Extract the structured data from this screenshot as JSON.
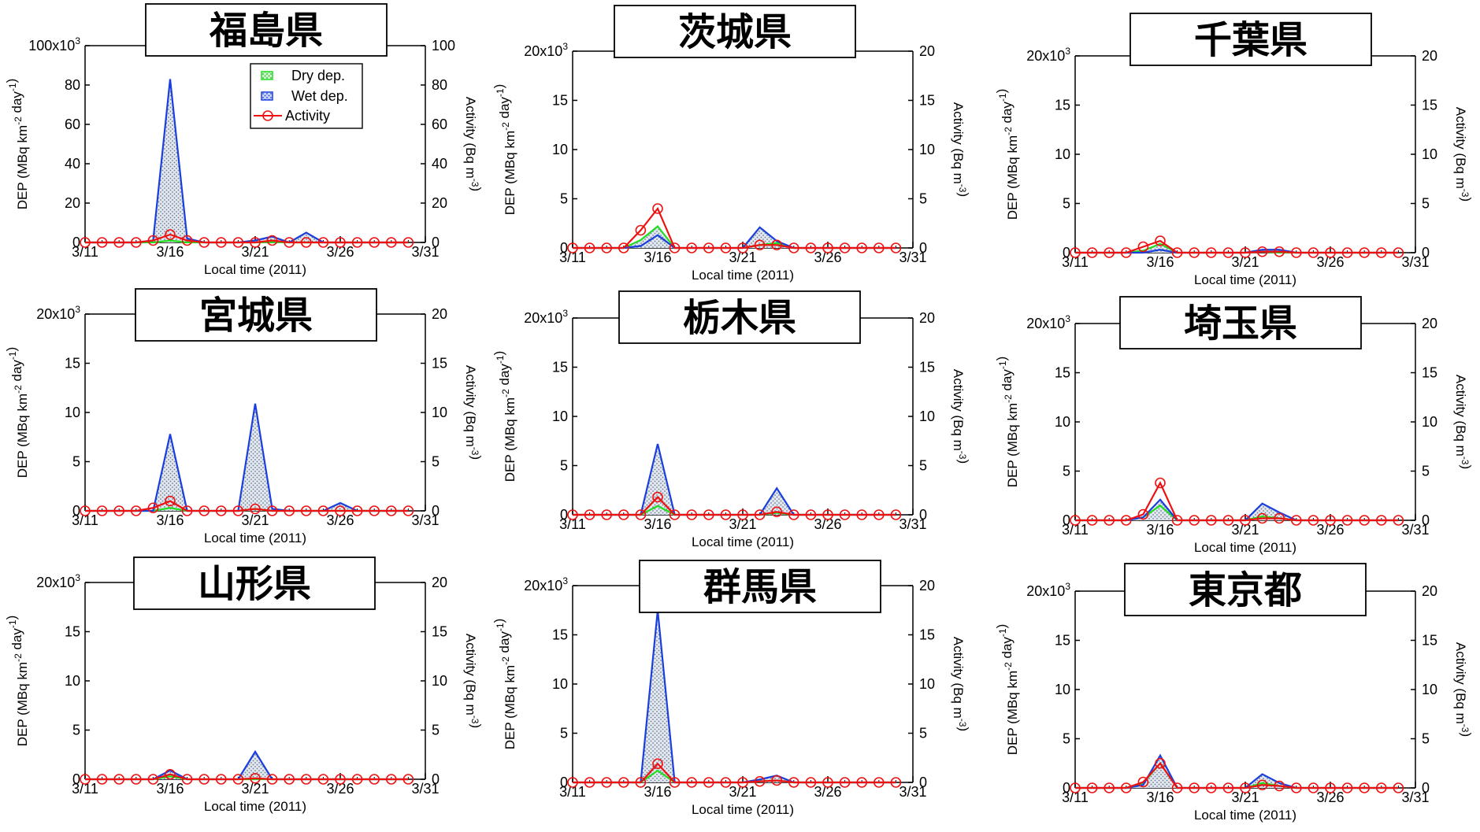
{
  "chart_data": [
    {
      "type": "area",
      "title": "福島県",
      "xlabel": "Local time (2011)",
      "ylabel": "DEP (MBq km-2 day-1)",
      "y2label": "Activity (Bq m-3)",
      "xticks": [
        "3/11",
        "3/16",
        "3/21",
        "3/26",
        "3/31"
      ],
      "x": [
        "3/11",
        "3/12",
        "3/13",
        "3/14",
        "3/15",
        "3/16",
        "3/17",
        "3/18",
        "3/19",
        "3/20",
        "3/21",
        "3/22",
        "3/23",
        "3/24",
        "3/25",
        "3/26",
        "3/27",
        "3/28",
        "3/29",
        "3/30"
      ],
      "ylim": [
        0,
        100000
      ],
      "yticks": [
        "0",
        "20",
        "40",
        "60",
        "80",
        "100x10³"
      ],
      "y2lim": [
        0,
        100
      ],
      "y2ticks": [
        "0",
        "20",
        "40",
        "60",
        "80",
        "100"
      ],
      "legend": {
        "location": "top-right",
        "entries": [
          "Dry dep.",
          "Wet dep.",
          "Activity"
        ]
      },
      "series": [
        {
          "name": "Dry dep.",
          "values": [
            0,
            0,
            0,
            0,
            0,
            1000,
            0,
            0,
            0,
            0,
            0,
            200,
            0,
            0,
            0,
            0,
            0,
            0,
            0,
            0
          ]
        },
        {
          "name": "Wet dep.",
          "values": [
            0,
            0,
            0,
            0,
            1000,
            83000,
            2000,
            0,
            0,
            0,
            1000,
            3000,
            0,
            5000,
            0,
            0,
            0,
            0,
            0,
            0
          ]
        },
        {
          "name": "Activity",
          "values": [
            0,
            0,
            0,
            0,
            1,
            4,
            1,
            0,
            0,
            0,
            0,
            1,
            0,
            0,
            0,
            0,
            0,
            0,
            0,
            0
          ]
        }
      ]
    },
    {
      "type": "area",
      "title": "茨城県",
      "xlabel": "Local time (2011)",
      "ylabel": "DEP (MBq km-2 day-1)",
      "y2label": "Activity (Bq m-3)",
      "xticks": [
        "3/11",
        "3/16",
        "3/21",
        "3/26",
        "3/31"
      ],
      "x": [
        "3/11",
        "3/12",
        "3/13",
        "3/14",
        "3/15",
        "3/16",
        "3/17",
        "3/18",
        "3/19",
        "3/20",
        "3/21",
        "3/22",
        "3/23",
        "3/24",
        "3/25",
        "3/26",
        "3/27",
        "3/28",
        "3/29",
        "3/30"
      ],
      "ylim": [
        0,
        20000
      ],
      "yticks": [
        "0",
        "5",
        "10",
        "15",
        "20x10³"
      ],
      "y2lim": [
        0,
        20
      ],
      "y2ticks": [
        "0",
        "5",
        "10",
        "15",
        "20"
      ],
      "series": [
        {
          "name": "Dry dep.",
          "values": [
            0,
            0,
            0,
            0,
            800,
            2200,
            0,
            0,
            0,
            0,
            0,
            300,
            500,
            0,
            0,
            0,
            0,
            0,
            0,
            0
          ]
        },
        {
          "name": "Wet dep.",
          "values": [
            0,
            0,
            0,
            0,
            200,
            1300,
            0,
            0,
            0,
            0,
            0,
            2100,
            700,
            0,
            0,
            0,
            0,
            0,
            0,
            0
          ]
        },
        {
          "name": "Activity",
          "values": [
            0,
            0,
            0,
            0,
            1.8,
            4,
            0,
            0,
            0,
            0,
            0,
            0.3,
            0.3,
            0,
            0,
            0,
            0,
            0,
            0,
            0
          ]
        }
      ]
    },
    {
      "type": "area",
      "title": "千葉県",
      "xlabel": "Local time (2011)",
      "ylabel": "DEP (MBq km-2 day-1)",
      "y2label": "Activity (Bq m-3)",
      "xticks": [
        "3/11",
        "3/16",
        "3/21",
        "3/26",
        "3/31"
      ],
      "x": [
        "3/11",
        "3/12",
        "3/13",
        "3/14",
        "3/15",
        "3/16",
        "3/17",
        "3/18",
        "3/19",
        "3/20",
        "3/21",
        "3/22",
        "3/23",
        "3/24",
        "3/25",
        "3/26",
        "3/27",
        "3/28",
        "3/29",
        "3/30"
      ],
      "ylim": [
        0,
        20000
      ],
      "yticks": [
        "0",
        "5",
        "10",
        "15",
        "20x10³"
      ],
      "y2lim": [
        0,
        20
      ],
      "y2ticks": [
        "0",
        "5",
        "10",
        "15",
        "20"
      ],
      "series": [
        {
          "name": "Dry dep.",
          "values": [
            0,
            0,
            0,
            0,
            200,
            900,
            0,
            0,
            0,
            0,
            0,
            100,
            0,
            0,
            0,
            0,
            0,
            0,
            0,
            0
          ]
        },
        {
          "name": "Wet dep.",
          "values": [
            0,
            0,
            0,
            0,
            0,
            300,
            0,
            0,
            0,
            0,
            0,
            300,
            300,
            0,
            0,
            0,
            0,
            0,
            0,
            0
          ]
        },
        {
          "name": "Activity",
          "values": [
            0,
            0,
            0,
            0,
            0.6,
            1.2,
            0,
            0,
            0,
            0,
            0,
            0.1,
            0.1,
            0,
            0,
            0,
            0,
            0,
            0,
            0
          ]
        }
      ]
    },
    {
      "type": "area",
      "title": "宮城県",
      "xlabel": "Local time (2011)",
      "ylabel": "DEP (MBq km-2 day-1)",
      "y2label": "Activity (Bq m-3)",
      "xticks": [
        "3/11",
        "3/16",
        "3/21",
        "3/26",
        "3/31"
      ],
      "x": [
        "3/11",
        "3/12",
        "3/13",
        "3/14",
        "3/15",
        "3/16",
        "3/17",
        "3/18",
        "3/19",
        "3/20",
        "3/21",
        "3/22",
        "3/23",
        "3/24",
        "3/25",
        "3/26",
        "3/27",
        "3/28",
        "3/29",
        "3/30"
      ],
      "ylim": [
        0,
        20000
      ],
      "yticks": [
        "0",
        "5",
        "10",
        "15",
        "20x10³"
      ],
      "y2lim": [
        0,
        20
      ],
      "y2ticks": [
        "0",
        "5",
        "10",
        "15",
        "20"
      ],
      "series": [
        {
          "name": "Dry dep.",
          "values": [
            0,
            0,
            0,
            0,
            0,
            300,
            0,
            0,
            0,
            0,
            200,
            0,
            0,
            0,
            0,
            0,
            0,
            0,
            0,
            0
          ]
        },
        {
          "name": "Wet dep.",
          "values": [
            0,
            0,
            0,
            0,
            0,
            7800,
            0,
            0,
            0,
            0,
            10900,
            200,
            0,
            0,
            0,
            800,
            0,
            0,
            0,
            0
          ]
        },
        {
          "name": "Activity",
          "values": [
            0,
            0,
            0,
            0,
            0.3,
            1,
            0,
            0,
            0,
            0,
            0.2,
            0,
            0,
            0,
            0,
            0,
            0,
            0,
            0,
            0
          ]
        }
      ]
    },
    {
      "type": "area",
      "title": "栃木県",
      "xlabel": "Local time (2011)",
      "ylabel": "DEP (MBq km-2 day-1)",
      "y2label": "Activity (Bq m-3)",
      "xticks": [
        "3/11",
        "3/16",
        "3/21",
        "3/26",
        "3/31"
      ],
      "x": [
        "3/11",
        "3/12",
        "3/13",
        "3/14",
        "3/15",
        "3/16",
        "3/17",
        "3/18",
        "3/19",
        "3/20",
        "3/21",
        "3/22",
        "3/23",
        "3/24",
        "3/25",
        "3/26",
        "3/27",
        "3/28",
        "3/29",
        "3/30"
      ],
      "ylim": [
        0,
        20000
      ],
      "yticks": [
        "0",
        "5",
        "10",
        "15",
        "20x10³"
      ],
      "y2lim": [
        0,
        20
      ],
      "y2ticks": [
        "0",
        "5",
        "10",
        "15",
        "20"
      ],
      "series": [
        {
          "name": "Dry dep.",
          "values": [
            0,
            0,
            0,
            0,
            0,
            900,
            0,
            0,
            0,
            0,
            0,
            0,
            200,
            0,
            0,
            0,
            0,
            0,
            0,
            0
          ]
        },
        {
          "name": "Wet dep.",
          "values": [
            0,
            0,
            0,
            0,
            0,
            7200,
            0,
            0,
            0,
            0,
            0,
            0,
            2700,
            0,
            0,
            0,
            0,
            0,
            0,
            0
          ]
        },
        {
          "name": "Activity",
          "values": [
            0,
            0,
            0,
            0,
            0,
            1.8,
            0,
            0,
            0,
            0,
            0,
            0,
            0.3,
            0,
            0,
            0,
            0,
            0,
            0,
            0
          ]
        }
      ]
    },
    {
      "type": "area",
      "title": "埼玉県",
      "xlabel": "Local time (2011)",
      "ylabel": "DEP (MBq km-2 day-1)",
      "y2label": "Activity (Bq m-3)",
      "xticks": [
        "3/11",
        "3/16",
        "3/21",
        "3/26",
        "3/31"
      ],
      "x": [
        "3/11",
        "3/12",
        "3/13",
        "3/14",
        "3/15",
        "3/16",
        "3/17",
        "3/18",
        "3/19",
        "3/20",
        "3/21",
        "3/22",
        "3/23",
        "3/24",
        "3/25",
        "3/26",
        "3/27",
        "3/28",
        "3/29",
        "3/30"
      ],
      "ylim": [
        0,
        20000
      ],
      "yticks": [
        "0",
        "5",
        "10",
        "15",
        "20x10³"
      ],
      "y2lim": [
        0,
        20
      ],
      "y2ticks": [
        "0",
        "5",
        "10",
        "15",
        "20"
      ],
      "series": [
        {
          "name": "Dry dep.",
          "values": [
            0,
            0,
            0,
            0,
            300,
            1500,
            0,
            0,
            0,
            0,
            0,
            400,
            200,
            0,
            0,
            0,
            0,
            0,
            0,
            0
          ]
        },
        {
          "name": "Wet dep.",
          "values": [
            0,
            0,
            0,
            0,
            300,
            2100,
            0,
            0,
            0,
            0,
            0,
            1700,
            800,
            0,
            0,
            0,
            0,
            0,
            0,
            0
          ]
        },
        {
          "name": "Activity",
          "values": [
            0,
            0,
            0,
            0,
            0.6,
            3.8,
            0,
            0,
            0,
            0,
            0,
            0.2,
            0.2,
            0,
            0,
            0,
            0,
            0,
            0,
            0
          ]
        }
      ]
    },
    {
      "type": "area",
      "title": "山形県",
      "xlabel": "Local time (2011)",
      "ylabel": "DEP (MBq km-2 day-1)",
      "y2label": "Activity (Bq m-3)",
      "xticks": [
        "3/11",
        "3/16",
        "3/21",
        "3/26",
        "3/31"
      ],
      "x": [
        "3/11",
        "3/12",
        "3/13",
        "3/14",
        "3/15",
        "3/16",
        "3/17",
        "3/18",
        "3/19",
        "3/20",
        "3/21",
        "3/22",
        "3/23",
        "3/24",
        "3/25",
        "3/26",
        "3/27",
        "3/28",
        "3/29",
        "3/30"
      ],
      "ylim": [
        0,
        20000
      ],
      "yticks": [
        "0",
        "5",
        "10",
        "15",
        "20x10³"
      ],
      "y2lim": [
        0,
        20
      ],
      "y2ticks": [
        "0",
        "5",
        "10",
        "15",
        "20"
      ],
      "series": [
        {
          "name": "Dry dep.",
          "values": [
            0,
            0,
            0,
            0,
            0,
            300,
            0,
            0,
            0,
            0,
            0,
            0,
            0,
            0,
            0,
            0,
            0,
            0,
            0,
            0
          ]
        },
        {
          "name": "Wet dep.",
          "values": [
            0,
            0,
            0,
            0,
            0,
            900,
            0,
            0,
            0,
            0,
            2800,
            0,
            0,
            0,
            0,
            0,
            0,
            0,
            0,
            0
          ]
        },
        {
          "name": "Activity",
          "values": [
            0,
            0,
            0,
            0,
            0,
            0.5,
            0,
            0,
            0,
            0,
            0.1,
            0,
            0,
            0,
            0,
            0,
            0,
            0,
            0,
            0
          ]
        }
      ]
    },
    {
      "type": "area",
      "title": "群馬県",
      "xlabel": "Local time (2011)",
      "ylabel": "DEP (MBq km-2 day-1)",
      "y2label": "Activity (Bq m-3)",
      "xticks": [
        "3/11",
        "3/16",
        "3/21",
        "3/26",
        "3/31"
      ],
      "x": [
        "3/11",
        "3/12",
        "3/13",
        "3/14",
        "3/15",
        "3/16",
        "3/17",
        "3/18",
        "3/19",
        "3/20",
        "3/21",
        "3/22",
        "3/23",
        "3/24",
        "3/25",
        "3/26",
        "3/27",
        "3/28",
        "3/29",
        "3/30"
      ],
      "ylim": [
        0,
        20000
      ],
      "yticks": [
        "0",
        "5",
        "10",
        "15",
        "20x10³"
      ],
      "y2lim": [
        0,
        20
      ],
      "y2ticks": [
        "0",
        "5",
        "10",
        "15",
        "20"
      ],
      "series": [
        {
          "name": "Dry dep.",
          "values": [
            0,
            0,
            0,
            0,
            0,
            1200,
            0,
            0,
            0,
            0,
            0,
            100,
            200,
            0,
            0,
            0,
            0,
            0,
            0,
            0
          ]
        },
        {
          "name": "Wet dep.",
          "values": [
            0,
            0,
            0,
            0,
            0,
            17500,
            0,
            0,
            0,
            0,
            0,
            300,
            700,
            0,
            0,
            0,
            0,
            0,
            0,
            0
          ]
        },
        {
          "name": "Activity",
          "values": [
            0,
            0,
            0,
            0,
            0,
            1.9,
            0,
            0,
            0,
            0,
            0,
            0.1,
            0.2,
            0,
            0,
            0,
            0,
            0,
            0,
            0
          ]
        }
      ]
    },
    {
      "type": "area",
      "title": "東京都",
      "xlabel": "Local time (2011)",
      "ylabel": "DEP (MBq km-2 day-1)",
      "y2label": "Activity (Bq m-3)",
      "xticks": [
        "3/11",
        "3/16",
        "3/21",
        "3/26",
        "3/31"
      ],
      "x": [
        "3/11",
        "3/12",
        "3/13",
        "3/14",
        "3/15",
        "3/16",
        "3/17",
        "3/18",
        "3/19",
        "3/20",
        "3/21",
        "3/22",
        "3/23",
        "3/24",
        "3/25",
        "3/26",
        "3/27",
        "3/28",
        "3/29",
        "3/30"
      ],
      "ylim": [
        0,
        20000
      ],
      "yticks": [
        "0",
        "5",
        "10",
        "15",
        "20x10³"
      ],
      "y2lim": [
        0,
        20
      ],
      "y2ticks": [
        "0",
        "5",
        "10",
        "15",
        "20"
      ],
      "series": [
        {
          "name": "Dry dep.",
          "values": [
            0,
            0,
            0,
            0,
            500,
            2500,
            0,
            0,
            0,
            0,
            0,
            500,
            200,
            0,
            0,
            0,
            0,
            0,
            0,
            0
          ]
        },
        {
          "name": "Wet dep.",
          "values": [
            0,
            0,
            0,
            0,
            300,
            3300,
            0,
            0,
            0,
            0,
            0,
            1400,
            500,
            0,
            0,
            0,
            0,
            0,
            0,
            0
          ]
        },
        {
          "name": "Activity",
          "values": [
            0,
            0,
            0,
            0,
            0.6,
            2.5,
            0,
            0,
            0,
            0,
            0,
            0.3,
            0.2,
            0,
            0,
            0,
            0,
            0,
            0,
            0
          ]
        }
      ]
    }
  ],
  "colors": {
    "dry": "#22dd22",
    "wet": "#1a3fdd",
    "activity": "#ee1111",
    "fill_dots": "#6a7f98"
  }
}
